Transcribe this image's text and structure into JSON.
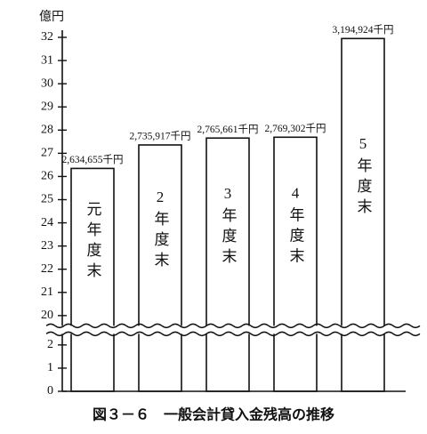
{
  "chart_data": {
    "type": "bar",
    "title": "図３－６　一般会計貸入金残高の推移",
    "y_unit": "億円",
    "categories": [
      "元年度末",
      "2年度末",
      "3年度末",
      "4年度末",
      "5年度末"
    ],
    "values": [
      26.34655,
      27.35917,
      27.65661,
      27.69302,
      31.94924
    ],
    "value_labels": [
      "2,634,655千円",
      "2,735,917千円",
      "2,765,661千円",
      "2,769,302千円",
      "3,194,924千円"
    ],
    "color": "#ffffff",
    "ylim": [
      0,
      32
    ],
    "yticks": [
      0,
      1,
      2,
      20,
      21,
      22,
      23,
      24,
      25,
      26,
      27,
      28,
      29,
      30,
      31,
      32
    ],
    "axis_break": true
  }
}
